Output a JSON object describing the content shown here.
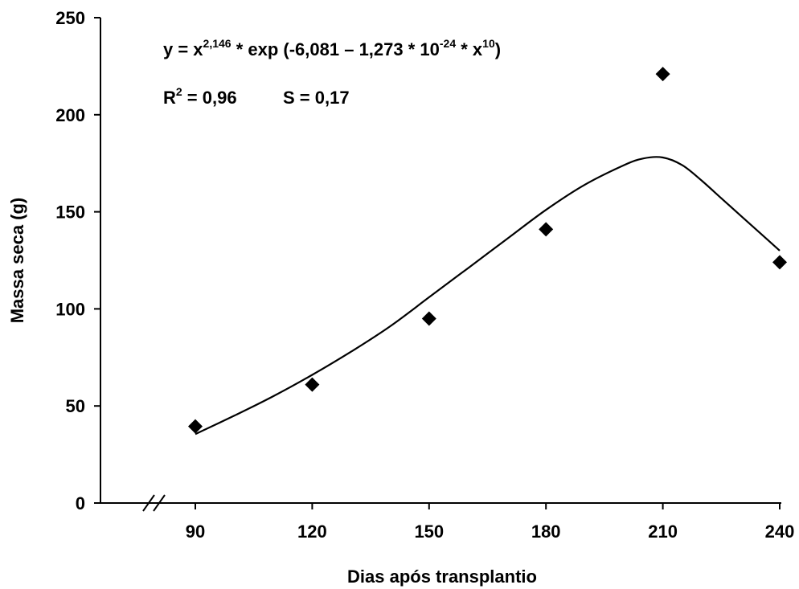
{
  "chart_data": {
    "type": "scatter",
    "title": "",
    "xlabel": "Dias após transplantio",
    "ylabel": "Massa seca (g)",
    "xlim": [
      70,
      240
    ],
    "ylim": [
      0,
      250
    ],
    "x_ticks": [
      90,
      120,
      150,
      180,
      210,
      240
    ],
    "y_ticks": [
      0,
      50,
      100,
      150,
      200,
      250
    ],
    "axis_break": "x-axis near origin",
    "grid": false,
    "legend": "none",
    "series": [
      {
        "marker": "diamond",
        "color": "#000000",
        "x": [
          90,
          120,
          150,
          180,
          210,
          240
        ],
        "y": [
          39.5,
          61,
          95,
          141,
          221,
          124
        ]
      }
    ],
    "fit_curve": {
      "style": "solid line",
      "color": "#000000",
      "x": [
        90,
        100,
        110,
        120,
        130,
        140,
        150,
        160,
        170,
        180,
        190,
        200,
        205,
        210,
        215,
        220,
        225,
        230,
        235,
        240
      ],
      "y": [
        35.5,
        45,
        55,
        66,
        78,
        91,
        106,
        121,
        136,
        151,
        164,
        174,
        177.5,
        178,
        174,
        166,
        157,
        148,
        139,
        130
      ]
    },
    "annotations": {
      "equation": {
        "p1": "y = x",
        "s1": "2,146",
        "p2": " * exp (-6,081 – 1,273 * 10",
        "s2": "-24",
        "p3": " * x",
        "s3": "10",
        "p4": ")"
      },
      "r2": {
        "p1": "R",
        "s1": "2",
        "p2": " = 0,96"
      },
      "s_stat": "S = 0,17"
    }
  }
}
